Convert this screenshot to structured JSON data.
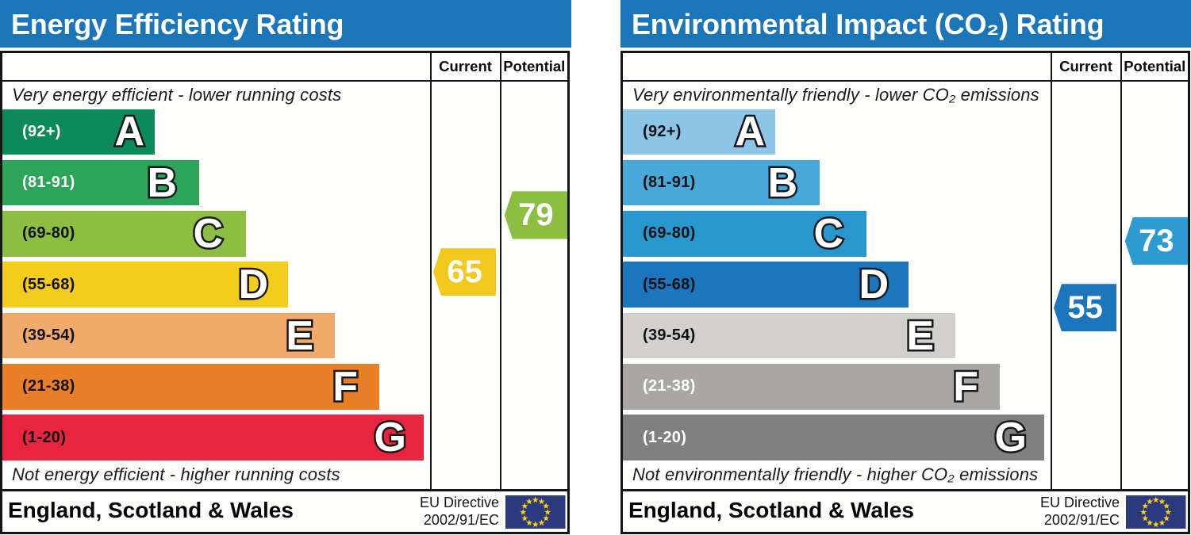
{
  "chart_data": [
    {
      "type": "bar",
      "title": "Energy Efficiency Rating",
      "header_color": "#1b75b9",
      "columns": {
        "current": "Current",
        "potential": "Potential"
      },
      "top_caption": "Very energy efficient - lower running costs",
      "bottom_caption": "Not energy efficient - higher running costs",
      "bands": [
        {
          "letter": "A",
          "label": "(92+)",
          "min": 92,
          "max": 100,
          "color": "#0d8a5c",
          "label_color": "#ffffff"
        },
        {
          "letter": "B",
          "label": "(81-91)",
          "min": 81,
          "max": 91,
          "color": "#2ca45a",
          "label_color": "#ffffff"
        },
        {
          "letter": "C",
          "label": "(69-80)",
          "min": 69,
          "max": 80,
          "color": "#8ebe41",
          "label_color": "#101014"
        },
        {
          "letter": "D",
          "label": "(55-68)",
          "min": 55,
          "max": 68,
          "color": "#f4cd1c",
          "label_color": "#101014"
        },
        {
          "letter": "E",
          "label": "(39-54)",
          "min": 39,
          "max": 54,
          "color": "#f2a96c",
          "label_color": "#101014"
        },
        {
          "letter": "F",
          "label": "(21-38)",
          "min": 21,
          "max": 38,
          "color": "#e87f26",
          "label_color": "#101014"
        },
        {
          "letter": "G",
          "label": "(1-20)",
          "min": 1,
          "max": 20,
          "color": "#e8243e",
          "label_color": "#101014"
        }
      ],
      "current": {
        "value": 65,
        "color": "#f2c91c"
      },
      "potential": {
        "value": 79,
        "color": "#8cbe40"
      },
      "footer": {
        "region": "England, Scotland & Wales",
        "directive_line1": "EU Directive",
        "directive_line2": "2002/91/EC",
        "flag": "eu-flag",
        "flag_background": "#2b3a7e",
        "flag_star_color": "#fcd116"
      }
    },
    {
      "type": "bar",
      "title": "Environmental Impact (CO₂) Rating",
      "header_color": "#1b75b9",
      "columns": {
        "current": "Current",
        "potential": "Potential"
      },
      "top_caption": "Very environmentally friendly - lower CO₂ emissions",
      "bottom_caption": "Not environmentally friendly - higher CO₂ emissions",
      "bands": [
        {
          "letter": "A",
          "label": "(92+)",
          "min": 92,
          "max": 100,
          "color": "#8cc5e7",
          "label_color": "#101014"
        },
        {
          "letter": "B",
          "label": "(81-91)",
          "min": 81,
          "max": 91,
          "color": "#47a8d9",
          "label_color": "#101014"
        },
        {
          "letter": "C",
          "label": "(69-80)",
          "min": 69,
          "max": 80,
          "color": "#2897ce",
          "label_color": "#101014"
        },
        {
          "letter": "D",
          "label": "(55-68)",
          "min": 55,
          "max": 68,
          "color": "#1b76bd",
          "label_color": "#101014"
        },
        {
          "letter": "E",
          "label": "(39-54)",
          "min": 39,
          "max": 54,
          "color": "#d2d0cd",
          "label_color": "#101014"
        },
        {
          "letter": "F",
          "label": "(21-38)",
          "min": 21,
          "max": 38,
          "color": "#a8a7a4",
          "label_color": "#ffffff"
        },
        {
          "letter": "G",
          "label": "(1-20)",
          "min": 1,
          "max": 20,
          "color": "#808080",
          "label_color": "#ffffff"
        }
      ],
      "current": {
        "value": 55,
        "color": "#1a75bc"
      },
      "potential": {
        "value": 73,
        "color": "#2d9ad2"
      },
      "footer": {
        "region": "England, Scotland & Wales",
        "directive_line1": "EU Directive",
        "directive_line2": "2002/91/EC",
        "flag": "eu-flag",
        "flag_background": "#2b3a7e",
        "flag_star_color": "#fcd116"
      }
    }
  ]
}
